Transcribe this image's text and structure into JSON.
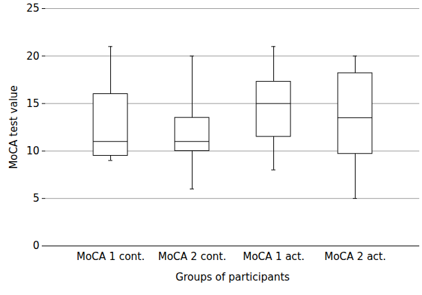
{
  "chart_data": {
    "type": "box",
    "x_label": "Groups of participants",
    "y_label": "MoCA test value",
    "categories": [
      "MoCA 1 cont.",
      "MoCA 2 cont.",
      "MoCA 1 act.",
      "MoCA 2 act."
    ],
    "whisker_low": [
      9,
      6,
      8,
      5
    ],
    "q1": [
      9.5,
      10,
      11.5,
      9.7
    ],
    "median": [
      11,
      11,
      15,
      13.5
    ],
    "q3": [
      16,
      13.5,
      17.3,
      18.2
    ],
    "whisker_high": [
      21,
      20,
      21,
      20
    ],
    "color": "#000000",
    "ylim": [
      0,
      25
    ],
    "yticks": [
      0,
      5,
      10,
      15,
      20,
      25
    ],
    "grid": true
  }
}
